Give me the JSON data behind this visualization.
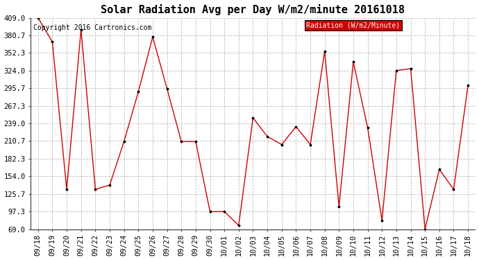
{
  "title": "Solar Radiation Avg per Day W/m2/minute 20161018",
  "copyright": "Copyright 2016 Cartronics.com",
  "legend_label": "Radiation (W/m2/Minute)",
  "dates": [
    "09/18",
    "09/19",
    "09/20",
    "09/21",
    "09/22",
    "09/23",
    "09/24",
    "09/25",
    "09/26",
    "09/27",
    "09/28",
    "09/29",
    "09/30",
    "10/01",
    "10/02",
    "10/03",
    "10/04",
    "10/05",
    "10/06",
    "10/07",
    "10/08",
    "10/09",
    "10/10",
    "10/11",
    "10/12",
    "10/13",
    "10/14",
    "10/15",
    "10/16",
    "10/17",
    "10/18"
  ],
  "values": [
    409.0,
    370.0,
    133.0,
    390.0,
    133.0,
    140.0,
    210.0,
    290.0,
    378.0,
    295.0,
    210.0,
    210.0,
    97.3,
    97.3,
    75.0,
    248.0,
    218.0,
    205.0,
    234.0,
    205.0,
    355.0,
    105.0,
    338.0,
    232.0,
    83.0,
    324.0,
    327.0,
    69.0,
    165.0,
    133.0,
    300.0
  ],
  "ylim": [
    69.0,
    409.0
  ],
  "yticks": [
    69.0,
    97.3,
    125.7,
    154.0,
    182.3,
    210.7,
    239.0,
    267.3,
    295.7,
    324.0,
    352.3,
    380.7,
    409.0
  ],
  "line_color": "#cc0000",
  "marker_color": "#000000",
  "background_color": "#ffffff",
  "grid_color": "#bbbbbb",
  "legend_bg": "#cc0000",
  "legend_fg": "#ffffff",
  "title_fontsize": 11,
  "tick_fontsize": 7.5,
  "copyright_fontsize": 7.0
}
